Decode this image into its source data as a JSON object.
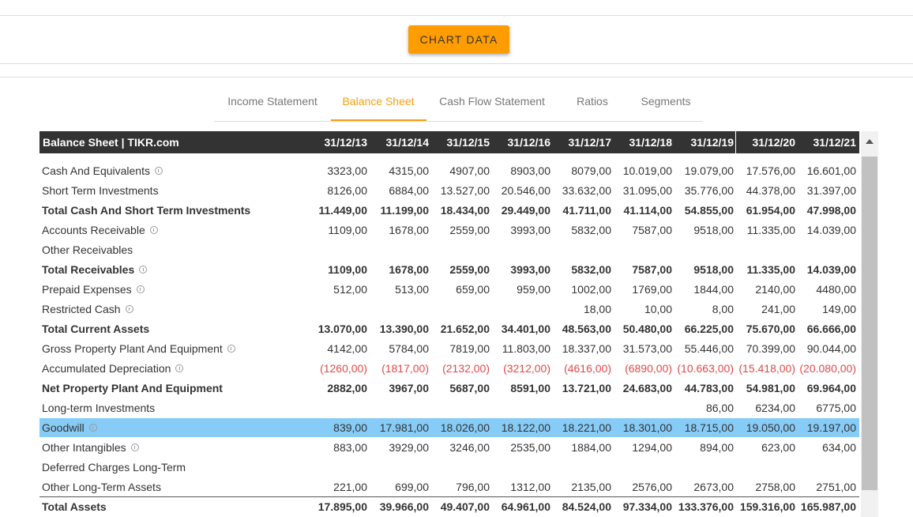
{
  "button": "CHART DATA",
  "tabs": {
    "items": [
      "Income Statement",
      "Balance Sheet",
      "Cash Flow Statement",
      "Ratios",
      "Segments"
    ],
    "active": 1
  },
  "table": {
    "title": "Balance Sheet | TIKR.com",
    "columns": [
      "31/12/13",
      "31/12/14",
      "31/12/15",
      "31/12/16",
      "31/12/17",
      "31/12/18",
      "31/12/19",
      "31/12/20",
      "31/12/21"
    ],
    "rows": [
      {
        "label": "Cash And Equivalents",
        "info": true,
        "bold": false,
        "values": [
          "3323,00",
          "4315,00",
          "4907,00",
          "8903,00",
          "8079,00",
          "10.019,00",
          "19.079,00",
          "17.576,00",
          "16.601,00"
        ]
      },
      {
        "label": "Short Term Investments",
        "info": false,
        "bold": false,
        "values": [
          "8126,00",
          "6884,00",
          "13.527,00",
          "20.546,00",
          "33.632,00",
          "31.095,00",
          "35.776,00",
          "44.378,00",
          "31.397,00"
        ]
      },
      {
        "label": "Total Cash And Short Term Investments",
        "info": false,
        "bold": true,
        "values": [
          "11.449,00",
          "11.199,00",
          "18.434,00",
          "29.449,00",
          "41.711,00",
          "41.114,00",
          "54.855,00",
          "61.954,00",
          "47.998,00"
        ]
      },
      {
        "label": "Accounts Receivable",
        "info": true,
        "bold": false,
        "values": [
          "1109,00",
          "1678,00",
          "2559,00",
          "3993,00",
          "5832,00",
          "7587,00",
          "9518,00",
          "11.335,00",
          "14.039,00"
        ]
      },
      {
        "label": "Other Receivables",
        "info": false,
        "bold": false,
        "values": [
          null,
          null,
          null,
          null,
          null,
          null,
          null,
          null,
          null
        ]
      },
      {
        "label": "Total Receivables",
        "info": true,
        "bold": true,
        "values": [
          "1109,00",
          "1678,00",
          "2559,00",
          "3993,00",
          "5832,00",
          "7587,00",
          "9518,00",
          "11.335,00",
          "14.039,00"
        ]
      },
      {
        "label": "Prepaid Expenses",
        "info": true,
        "bold": false,
        "values": [
          "512,00",
          "513,00",
          "659,00",
          "959,00",
          "1002,00",
          "1769,00",
          "1844,00",
          "2140,00",
          "4480,00"
        ]
      },
      {
        "label": "Restricted Cash",
        "info": true,
        "bold": false,
        "values": [
          null,
          null,
          null,
          null,
          "18,00",
          "10,00",
          "8,00",
          "241,00",
          "149,00"
        ]
      },
      {
        "label": "Total Current Assets",
        "info": false,
        "bold": true,
        "values": [
          "13.070,00",
          "13.390,00",
          "21.652,00",
          "34.401,00",
          "48.563,00",
          "50.480,00",
          "66.225,00",
          "75.670,00",
          "66.666,00"
        ]
      },
      {
        "label": "Gross Property Plant And Equipment",
        "info": true,
        "bold": false,
        "values": [
          "4142,00",
          "5784,00",
          "7819,00",
          "11.803,00",
          "18.337,00",
          "31.573,00",
          "55.446,00",
          "70.399,00",
          "90.044,00"
        ]
      },
      {
        "label": "Accumulated Depreciation",
        "info": true,
        "bold": false,
        "values": [
          "(1260,00)",
          "(1817,00)",
          "(2132,00)",
          "(3212,00)",
          "(4616,00)",
          "(6890,00)",
          "(10.663,00)",
          "(15.418,00)",
          "(20.080,00)"
        ]
      },
      {
        "label": "Net Property Plant And Equipment",
        "info": false,
        "bold": true,
        "values": [
          "2882,00",
          "3967,00",
          "5687,00",
          "8591,00",
          "13.721,00",
          "24.683,00",
          "44.783,00",
          "54.981,00",
          "69.964,00"
        ]
      },
      {
        "label": "Long-term Investments",
        "info": false,
        "bold": false,
        "values": [
          null,
          null,
          null,
          null,
          null,
          null,
          "86,00",
          "6234,00",
          "6775,00"
        ]
      },
      {
        "label": "Goodwill",
        "info": true,
        "bold": false,
        "highlighted": true,
        "values": [
          "839,00",
          "17.981,00",
          "18.026,00",
          "18.122,00",
          "18.221,00",
          "18.301,00",
          "18.715,00",
          "19.050,00",
          "19.197,00"
        ]
      },
      {
        "label": "Other Intangibles",
        "info": true,
        "bold": false,
        "values": [
          "883,00",
          "3929,00",
          "3246,00",
          "2535,00",
          "1884,00",
          "1294,00",
          "894,00",
          "623,00",
          "634,00"
        ]
      },
      {
        "label": "Deferred Charges Long-Term",
        "info": false,
        "bold": false,
        "values": [
          null,
          null,
          null,
          null,
          null,
          null,
          null,
          null,
          null
        ]
      },
      {
        "label": "Other Long-Term Assets",
        "info": false,
        "bold": false,
        "values": [
          "221,00",
          "699,00",
          "796,00",
          "1312,00",
          "2135,00",
          "2576,00",
          "2673,00",
          "2758,00",
          "2751,00"
        ]
      },
      {
        "label": "Total Assets",
        "info": false,
        "bold": true,
        "values": [
          "17.895,00",
          "39.966,00",
          "49.407,00",
          "64.961,00",
          "84.524,00",
          "97.334,00",
          "133.376,00",
          "159.316,00",
          "165.987,00"
        ]
      }
    ]
  }
}
